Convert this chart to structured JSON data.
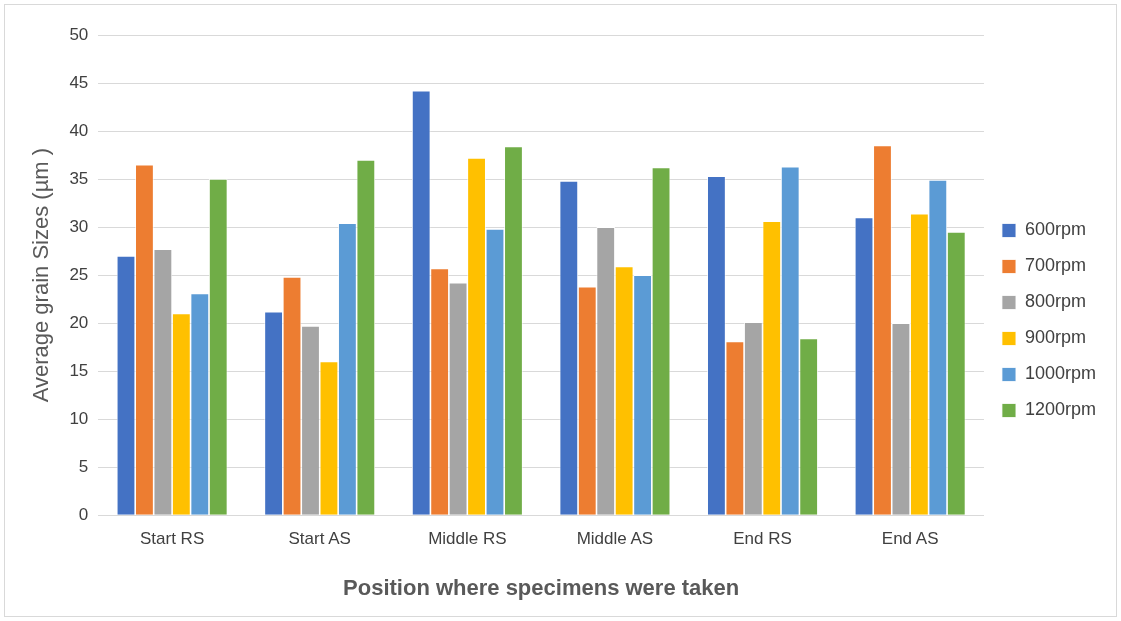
{
  "chart_data": {
    "type": "bar",
    "xlabel": "Position where specimens were taken",
    "ylabel": "Average grain Sizes (µm )",
    "categories": [
      "Start RS",
      "Start AS",
      "Middle RS",
      "Middle AS",
      "End RS",
      "End AS"
    ],
    "series": [
      {
        "name": "600rpm",
        "color": "#4472c4",
        "values": [
          27.0,
          21.2,
          44.2,
          34.8,
          35.3,
          31.0
        ]
      },
      {
        "name": "700rpm",
        "color": "#ed7d31",
        "values": [
          36.5,
          24.8,
          25.7,
          23.8,
          18.1,
          38.5
        ]
      },
      {
        "name": "800rpm",
        "color": "#a5a5a5",
        "values": [
          27.7,
          19.7,
          24.2,
          30.0,
          20.1,
          20.0
        ]
      },
      {
        "name": "900rpm",
        "color": "#ffc000",
        "values": [
          21.0,
          16.0,
          37.2,
          25.9,
          30.6,
          31.4
        ]
      },
      {
        "name": "1000rpm",
        "color": "#5b9bd5",
        "values": [
          23.1,
          30.4,
          29.8,
          25.0,
          36.3,
          34.9
        ]
      },
      {
        "name": "1200rpm",
        "color": "#70ad47",
        "values": [
          35.0,
          37.0,
          38.4,
          36.2,
          18.4,
          29.5
        ]
      }
    ],
    "ylim": [
      0,
      50
    ],
    "yticks": [
      0,
      5,
      10,
      15,
      20,
      25,
      30,
      35,
      40,
      45,
      50
    ],
    "grid": "y",
    "legend": "right"
  }
}
